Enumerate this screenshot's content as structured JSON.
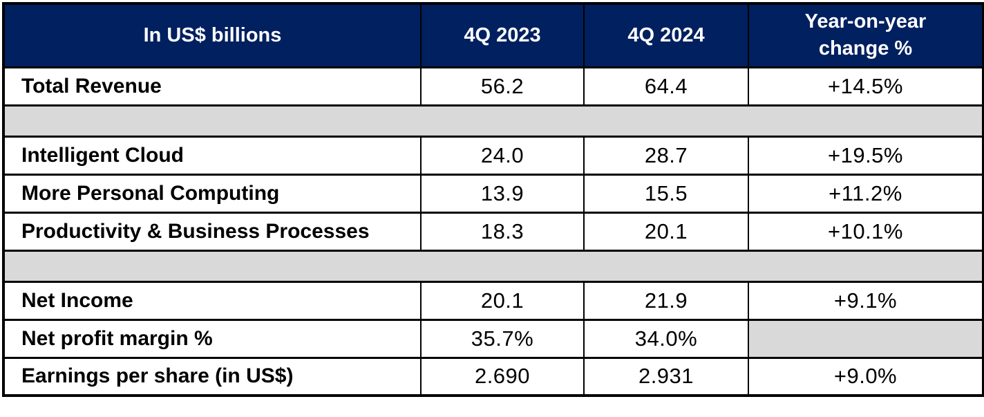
{
  "colors": {
    "header_bg": "#002060",
    "header_text": "#ffffff",
    "spacer_bg": "#d9d9d9",
    "border": "#000000",
    "text": "#000000",
    "page_bg": "#ffffff"
  },
  "header": {
    "metric": "In US$ billions",
    "q4_2023": "4Q 2023",
    "q4_2024": "4Q 2024",
    "yoy": "Year-on-year change %"
  },
  "rows": [
    {
      "label": "Total Revenue",
      "q4_2023": "56.2",
      "q4_2024": "64.4",
      "yoy": "+14.5%"
    },
    {
      "label": "Intelligent Cloud",
      "q4_2023": "24.0",
      "q4_2024": "28.7",
      "yoy": "+19.5%"
    },
    {
      "label": "More Personal Computing",
      "q4_2023": "13.9",
      "q4_2024": "15.5",
      "yoy": "+11.2%"
    },
    {
      "label": "Productivity & Business Processes",
      "q4_2023": "18.3",
      "q4_2024": "20.1",
      "yoy": "+10.1%"
    },
    {
      "label": "Net Income",
      "q4_2023": "20.1",
      "q4_2024": "21.9",
      "yoy": "+9.1%"
    },
    {
      "label": "Net profit margin %",
      "q4_2023": "35.7%",
      "q4_2024": "34.0%",
      "yoy": ""
    },
    {
      "label": "Earnings per share (in US$)",
      "q4_2023": "2.690",
      "q4_2024": "2.931",
      "yoy": "+9.0%"
    }
  ],
  "chart_data": {
    "type": "table",
    "title": "In US$ billions",
    "columns": [
      "In US$ billions",
      "4Q 2023",
      "4Q 2024",
      "Year-on-year change %"
    ],
    "rows": [
      [
        "Total Revenue",
        56.2,
        64.4,
        "+14.5%"
      ],
      [
        "Intelligent Cloud",
        24.0,
        28.7,
        "+19.5%"
      ],
      [
        "More Personal Computing",
        13.9,
        15.5,
        "+11.2%"
      ],
      [
        "Productivity & Business Processes",
        18.3,
        20.1,
        "+10.1%"
      ],
      [
        "Net Income",
        20.1,
        21.9,
        "+9.1%"
      ],
      [
        "Net profit margin %",
        "35.7%",
        "34.0%",
        null
      ],
      [
        "Earnings per share (in US$)",
        2.69,
        2.931,
        "+9.0%"
      ]
    ]
  }
}
